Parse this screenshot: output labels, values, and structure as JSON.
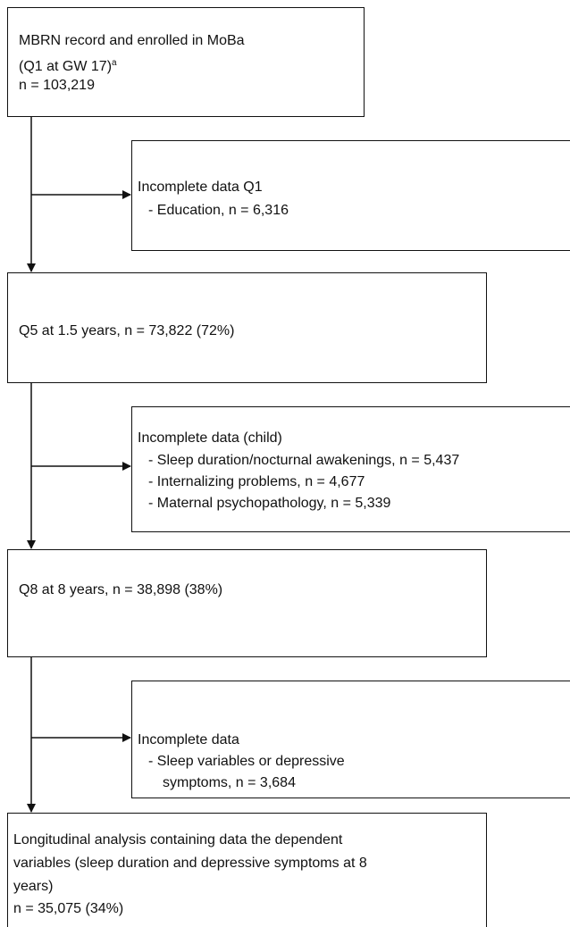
{
  "nodes": [
    {
      "lines": [
        "MBRN record and enrolled in MoBa",
        "(Q1 at GW 17)",
        "n = 103,219"
      ],
      "superscript": "a"
    },
    {
      "lines": [
        "Incomplete data Q1",
        "- Education, n = 6,316"
      ]
    },
    {
      "lines": [
        "Q5 at 1.5 years, n = 73,822 (72%)"
      ]
    },
    {
      "lines": [
        "Incomplete data (child)",
        "- Sleep duration/nocturnal awakenings, n = 5,437",
        "- Internalizing problems, n = 4,677",
        "- Maternal psychopathology, n = 5,339"
      ]
    },
    {
      "lines": [
        "Q8 at 8 years, n = 38,898 (38%)"
      ]
    },
    {
      "lines": [
        "Incomplete data",
        "- Sleep variables or depressive",
        "symptoms, n = 3,684"
      ]
    },
    {
      "lines": [
        "Longitudinal analysis containing data the dependent",
        "variables (sleep duration and depressive symptoms at 8",
        "years)",
        "n = 35,075 (34%)"
      ]
    }
  ]
}
